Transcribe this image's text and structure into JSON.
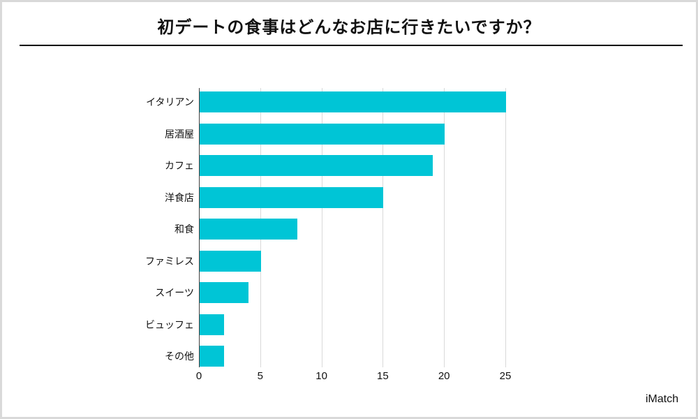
{
  "page": {
    "title": "初デートの食事はどんなお店に行きたいですか？",
    "watermark": "iMatch"
  },
  "chart_data": {
    "type": "bar",
    "orientation": "horizontal",
    "title": "初デートの食事はどんなお店に行きたいですか？",
    "categories": [
      "イタリアン",
      "居酒屋",
      "カフェ",
      "洋食店",
      "和食",
      "ファミレス",
      "スイーツ",
      "ビュッフェ",
      "その他"
    ],
    "values": [
      25,
      20,
      19,
      15,
      8,
      5,
      4,
      2,
      2
    ],
    "xlabel": "",
    "ylabel": "",
    "xlim": [
      0,
      25
    ],
    "xticks": [
      0,
      5,
      10,
      15,
      20,
      25
    ],
    "grid": true,
    "legend": "none",
    "bar_color": "#00c5d6",
    "gridline_color": "#d9d9d9",
    "axis_color": "#404040"
  }
}
